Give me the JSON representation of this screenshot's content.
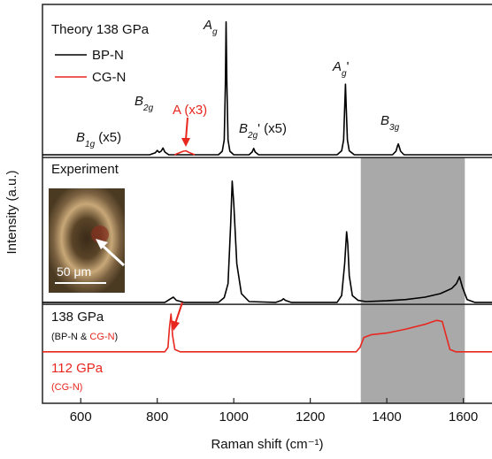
{
  "chart_data": {
    "type": "line",
    "x_label": "Raman shift (cm⁻¹)",
    "y_label": "Intensity (a.u.)",
    "xlim": [
      500,
      1675
    ],
    "xticks": [
      600,
      800,
      1000,
      1200,
      1400,
      1600
    ],
    "ylim": [
      0,
      100
    ],
    "panel_dividers": [
      61.6,
      24.8
    ],
    "shaded_region": {
      "x": [
        1332,
        1604
      ],
      "y": [
        0,
        61.6
      ],
      "color": "#a9a9a9"
    },
    "series": [
      {
        "name": "BP-N",
        "color": "#000000",
        "x": [
          500,
          780,
          795,
          800,
          805,
          810,
          815,
          820,
          830,
          960,
          970,
          975,
          978,
          980,
          982,
          985,
          990,
          1000,
          1040,
          1048,
          1052,
          1056,
          1065,
          1270,
          1282,
          1287,
          1290,
          1292,
          1294,
          1297,
          1302,
          1315,
          1415,
          1424,
          1428,
          1430,
          1432,
          1436,
          1445,
          1675
        ],
        "values": [
          62.3,
          62.3,
          62.8,
          63.4,
          62.9,
          63.2,
          64.0,
          63.0,
          62.3,
          62.3,
          63.2,
          66,
          80,
          95.6,
          80,
          66,
          63.2,
          62.3,
          62.3,
          63.0,
          63.9,
          63.0,
          62.3,
          62.3,
          63.3,
          66,
          74,
          80,
          74,
          66,
          63.3,
          62.3,
          62.3,
          63.2,
          64.5,
          65,
          64.5,
          63.2,
          62.3,
          62.3
        ]
      },
      {
        "name": "CG-N",
        "color": "#e8271f",
        "x": [
          845,
          858,
          868,
          875,
          885,
          898
        ],
        "values": [
          62.3,
          62.8,
          63.2,
          63.3,
          62.8,
          62.3
        ]
      },
      {
        "color": "#000000",
        "x": [
          500,
          820,
          835,
          842,
          850,
          870,
          960,
          975,
          985,
          992,
          996,
          1000,
          1008,
          1020,
          1040,
          1110,
          1125,
          1130,
          1135,
          1150,
          1270,
          1282,
          1290,
          1295,
          1298,
          1302,
          1310,
          1325,
          1345,
          1400,
          1450,
          1500,
          1540,
          1570,
          1582,
          1590,
          1598,
          1610,
          1630,
          1675
        ],
        "values": [
          25.3,
          25.3,
          26.2,
          26.6,
          25.8,
          25.3,
          25.3,
          26.5,
          30,
          45,
          55.7,
          50,
          35,
          27.5,
          25.5,
          25.3,
          25.8,
          26.2,
          25.8,
          25.3,
          25.3,
          27,
          35,
          43,
          40,
          32,
          27,
          25.8,
          25.5,
          25.7,
          26.0,
          26.6,
          27.5,
          28.8,
          30,
          31.7,
          29,
          26,
          25.3,
          25.3
        ]
      },
      {
        "color": "#e8271f",
        "x": [
          500,
          820,
          828,
          832,
          836,
          840,
          846,
          860,
          1320,
          1330,
          1340,
          1360,
          1400,
          1450,
          1500,
          1530,
          1545,
          1555,
          1565,
          1580,
          1675
        ],
        "values": [
          12.9,
          12.9,
          14,
          19,
          22.4,
          17,
          13.5,
          12.9,
          12.9,
          14,
          16.5,
          17.2,
          17.6,
          18.6,
          19.8,
          20.8,
          20.5,
          17,
          13.5,
          12.9,
          12.9
        ]
      }
    ],
    "annotations": [
      {
        "parts": [
          {
            "text": "Theory 138 GPa"
          }
        ]
      },
      {
        "parts": [
          {
            "text": "A"
          },
          {
            "text": "g",
            "sub": true
          }
        ]
      },
      {
        "parts": [
          {
            "text": "B"
          },
          {
            "text": "2g",
            "sub": true
          }
        ]
      },
      {
        "parts": [
          {
            "text": "B"
          },
          {
            "text": "1g",
            "sub": true
          },
          {
            "text": " (x5)"
          }
        ]
      },
      {
        "parts": [
          {
            "text": "A (x3)",
            "color": "#e8271f"
          }
        ]
      },
      {
        "parts": [
          {
            "text": "B"
          },
          {
            "text": "2g",
            "sub": true
          },
          {
            "text": "' (x5)"
          }
        ]
      },
      {
        "parts": [
          {
            "text": "A"
          },
          {
            "text": "g",
            "sub": true
          },
          {
            "text": "'"
          }
        ]
      },
      {
        "parts": [
          {
            "text": "B"
          },
          {
            "text": "3g",
            "sub": true
          }
        ]
      },
      {
        "parts": [
          {
            "text": "Experiment"
          }
        ]
      },
      {
        "parts": [
          {
            "text": "50 μm",
            "color": "#ffffff"
          }
        ]
      },
      {
        "parts": [
          {
            "text": "138 GPa"
          }
        ]
      },
      {
        "parts": [
          {
            "text": "(BP-N & "
          },
          {
            "text": "CG-N",
            "color": "#e8271f"
          },
          {
            "text": ")"
          }
        ]
      },
      {
        "parts": [
          {
            "text": "112 GPa",
            "color": "#e8271f"
          }
        ]
      },
      {
        "parts": [
          {
            "text": "(CG-N)",
            "color": "#e8271f"
          }
        ]
      }
    ]
  }
}
